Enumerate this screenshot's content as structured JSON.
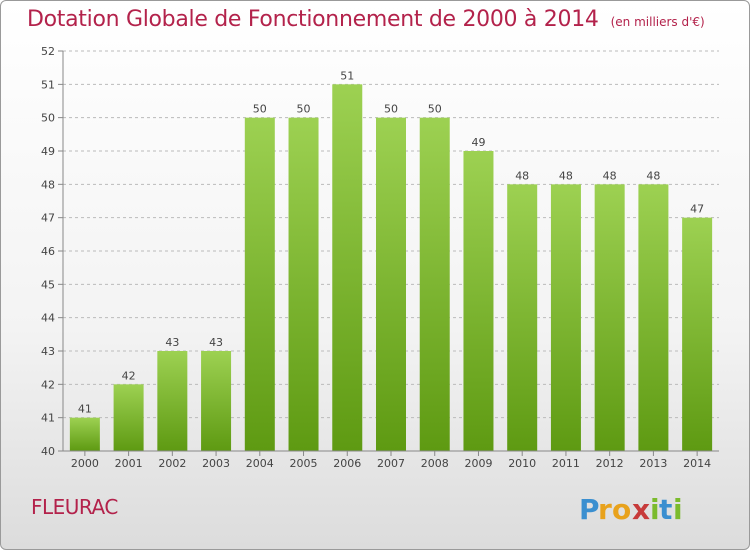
{
  "header": {
    "title": "Dotation Globale de Fonctionnement de 2000 à 2014",
    "subtitle": "(en milliers d'€)"
  },
  "footer": {
    "commune": "FLEURAC",
    "logo_text": "Proxiti"
  },
  "colors": {
    "title": "#b3224b",
    "bar_top": "#9dd152",
    "bar_bottom": "#5e9a12",
    "axis": "#888888",
    "grid": "#bbbbbb",
    "label": "#444444"
  },
  "chart_data": {
    "type": "bar",
    "title": "Dotation Globale de Fonctionnement de 2000 à 2014",
    "subtitle": "(en milliers d'€)",
    "categories": [
      "2000",
      "2001",
      "2002",
      "2003",
      "2004",
      "2005",
      "2006",
      "2007",
      "2008",
      "2009",
      "2010",
      "2011",
      "2012",
      "2013",
      "2014"
    ],
    "values": [
      41,
      42,
      43,
      43,
      50,
      50,
      51,
      50,
      50,
      49,
      48,
      48,
      48,
      48,
      47
    ],
    "data_labels": [
      "41",
      "42",
      "43",
      "43",
      "50",
      "50",
      "51",
      "50",
      "50",
      "49",
      "48",
      "48",
      "48",
      "48",
      "47"
    ],
    "ylim": [
      40,
      52
    ],
    "yticks": [
      "40",
      "41",
      "42",
      "43",
      "44",
      "45",
      "46",
      "47",
      "48",
      "49",
      "50",
      "51",
      "52"
    ],
    "grid": true,
    "grid_style": "dashed horizontal"
  }
}
